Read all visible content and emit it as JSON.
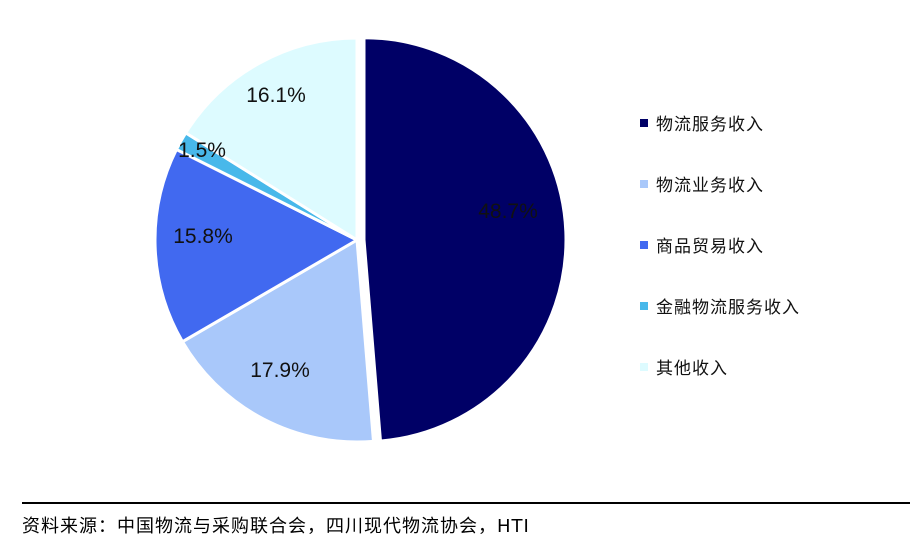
{
  "chart_data": {
    "type": "pie",
    "slices": [
      {
        "label": "物流服务收入",
        "value": 48.7,
        "display": "48.7%",
        "color": "#000066"
      },
      {
        "label": "物流业务收入",
        "value": 17.9,
        "display": "17.9%",
        "color": "#A9C8FA"
      },
      {
        "label": "商品贸易收入",
        "value": 15.8,
        "display": "15.8%",
        "color": "#4169F0"
      },
      {
        "label": "金融物流服务收入",
        "value": 1.5,
        "display": "1.5%",
        "color": "#48B8EA"
      },
      {
        "label": "其他收入",
        "value": 16.1,
        "display": "16.1%",
        "color": "#DDFBFF"
      }
    ],
    "start_angle": "12 o'clock",
    "direction": "clockwise",
    "legend_position": "right"
  },
  "source": "资料来源：中国物流与采购联合会，四川现代物流协会，HTI"
}
